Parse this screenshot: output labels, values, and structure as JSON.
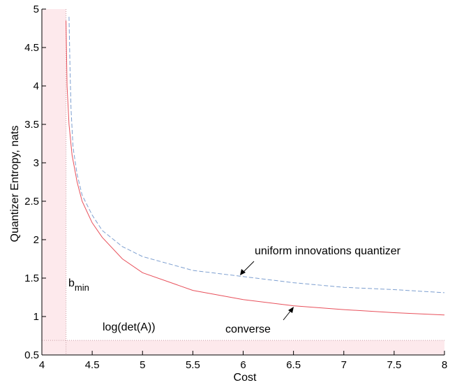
{
  "chart_data": {
    "type": "line",
    "xlabel": "Cost",
    "ylabel": "Quantizer Entropy, nats",
    "xlim": [
      4,
      8
    ],
    "ylim": [
      0.5,
      5
    ],
    "xticks": [
      4,
      4.5,
      5,
      5.5,
      6,
      6.5,
      7,
      7.5,
      8
    ],
    "xtick_labels": [
      "4",
      "4.5",
      "5",
      "5.5",
      "6",
      "6.5",
      "7",
      "7.5",
      "8"
    ],
    "yticks": [
      0.5,
      1,
      1.5,
      2,
      2.5,
      3,
      3.5,
      4,
      4.5,
      5
    ],
    "ytick_labels": [
      "0.5",
      "1",
      "1.5",
      "2",
      "2.5",
      "3",
      "3.5",
      "4",
      "4.5",
      "5"
    ],
    "grid": false,
    "shaded_regions": {
      "color": "#fde9ec",
      "x_below": 4.24,
      "y_below": 0.69
    },
    "reference_lines": [
      {
        "orientation": "vertical",
        "value": 4.24,
        "color": "#c9a0a6",
        "style": "dotted"
      },
      {
        "orientation": "horizontal",
        "value": 0.69,
        "color": "#c9a0a6",
        "style": "dotted"
      }
    ],
    "series": [
      {
        "color": "#e8505b",
        "style": "solid",
        "x": [
          4.24,
          4.25,
          4.27,
          4.3,
          4.35,
          4.4,
          4.5,
          4.6,
          4.8,
          5.0,
          5.5,
          6.0,
          6.5,
          7.0,
          7.5,
          8.0
        ],
        "y": [
          4.85,
          4.0,
          3.5,
          3.1,
          2.75,
          2.5,
          2.22,
          2.03,
          1.75,
          1.57,
          1.34,
          1.22,
          1.14,
          1.09,
          1.05,
          1.02
        ]
      },
      {
        "color": "#7d9fd0",
        "style": "dashed",
        "x": [
          4.27,
          4.28,
          4.29,
          4.31,
          4.35,
          4.4,
          4.5,
          4.6,
          4.8,
          5.0,
          5.5,
          6.0,
          6.5,
          7.0,
          7.5,
          8.0
        ],
        "y": [
          4.9,
          4.2,
          3.7,
          3.2,
          2.85,
          2.58,
          2.32,
          2.12,
          1.91,
          1.78,
          1.6,
          1.52,
          1.44,
          1.38,
          1.35,
          1.31
        ]
      }
    ],
    "annotations": {
      "uniform": "uniform innovations quantizer",
      "converse": "converse",
      "logdet": "log(det(A))",
      "bmin_base": "b",
      "bmin_sub": "min"
    }
  }
}
